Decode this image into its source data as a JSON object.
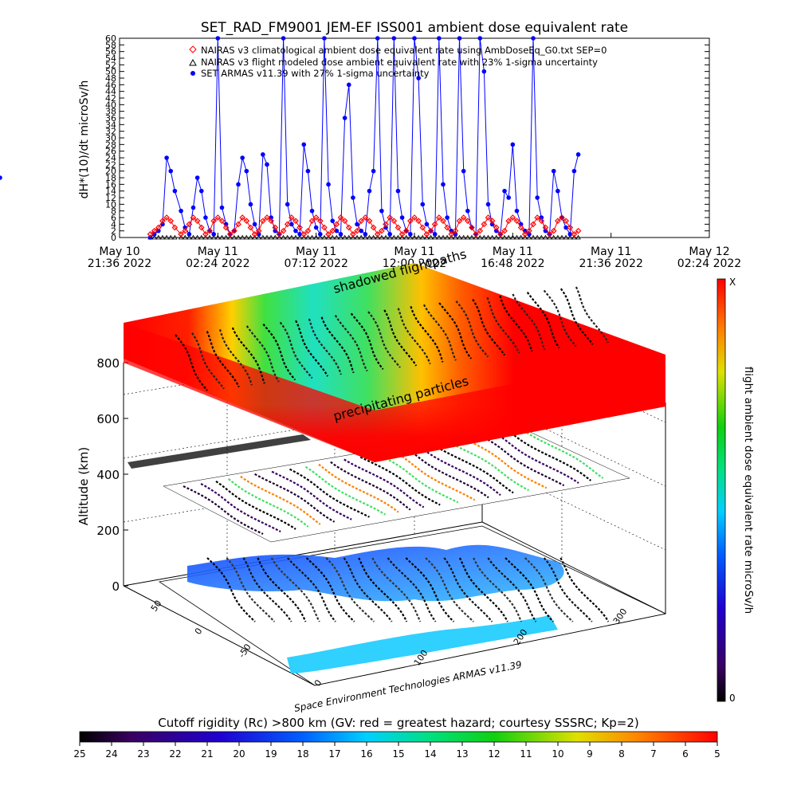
{
  "chart_data": [
    {
      "type": "line",
      "title": "SET_RAD_FM9001  JEM-EF ISS001 ambient dose equivalent rate",
      "ylabel": "dH*(10)/dt microSv/h",
      "ylim": [
        0,
        60
      ],
      "y_ticks": [
        "0",
        "2",
        "4",
        "6",
        "8",
        "10",
        "12",
        "14",
        "16",
        "18",
        "20",
        "22",
        "24",
        "26",
        "28",
        "30",
        "32",
        "34",
        "36",
        "38",
        "40",
        "42",
        "44",
        "46",
        "48",
        "50",
        "52",
        "54",
        "56",
        "58",
        "60"
      ],
      "x_ticks": [
        {
          "line1": "May 10",
          "line2": "21:36 2022"
        },
        {
          "line1": "May 11",
          "line2": "02:24 2022"
        },
        {
          "line1": "May 11",
          "line2": "07:12 2022"
        },
        {
          "line1": "May 11",
          "line2": "12:00 2022"
        },
        {
          "line1": "May 11",
          "line2": "16:48 2022"
        },
        {
          "line1": "May 11",
          "line2": "21:36 2022"
        },
        {
          "line1": "May 12",
          "line2": "02:24 2022"
        }
      ],
      "legend": [
        "NAIRAS v3 climatological ambient dose equivalent rate using AmbDoseEq_G0.txt SEP=0",
        "NAIRAS v3 flight modeled dose ambient equivalent rate with 23% 1-sigma uncertainty",
        "SET ARMAS v11.39 with 27% 1-sigma uncertainty"
      ],
      "legend_position": "top",
      "series": [
        {
          "name": "NAIRAS v3 climatological ambient dose equivalent rate using AmbDoseEq_G0.txt SEP=0",
          "color": "#ff0000",
          "marker": "diamond"
        },
        {
          "name": "NAIRAS v3 flight modeled dose ambient equivalent rate with 23% 1-sigma uncertainty",
          "color": "#000000",
          "marker": "triangle"
        },
        {
          "name": "SET ARMAS v11.39 with 27% 1-sigma uncertainty",
          "color": "#0000ff",
          "marker": "circle"
        }
      ],
      "x_hours": [
        1.5,
        1.7,
        1.9,
        2.1,
        2.3,
        2.5,
        2.7,
        3.0,
        3.2,
        3.4,
        3.6,
        3.8,
        4.0,
        4.2,
        4.4,
        4.6,
        4.8,
        5.0,
        5.2,
        5.4,
        5.6,
        5.8,
        6.0,
        6.2,
        6.4,
        6.6,
        6.8,
        7.0,
        7.2,
        7.4,
        7.6,
        7.8,
        8.0,
        8.2,
        8.4,
        8.6,
        8.8,
        9.0,
        9.2,
        9.4,
        9.6,
        9.8,
        10.0,
        10.2,
        10.4,
        10.6,
        10.8,
        11.0,
        11.2,
        11.4,
        11.6,
        11.8,
        12.0,
        12.2,
        12.4,
        12.6,
        12.8,
        13.0,
        13.2,
        13.4,
        13.6,
        13.8,
        14.0,
        14.2,
        14.4,
        14.6,
        14.8,
        15.0,
        15.2,
        15.4,
        15.6,
        15.8,
        16.0,
        16.2,
        16.4,
        16.6,
        16.8,
        17.0,
        17.2,
        17.4,
        17.6,
        17.8,
        18.0,
        18.2,
        18.4,
        18.6,
        18.8,
        19.0,
        19.2,
        19.4,
        19.6,
        19.8,
        20.0,
        20.2,
        20.4,
        20.6,
        20.8,
        21.0,
        21.2,
        21.4,
        21.6,
        21.8,
        22.0,
        22.2,
        22.4
      ],
      "armas_values": [
        0,
        1,
        2,
        4,
        24,
        20,
        14,
        8,
        3,
        1,
        9,
        18,
        14,
        6,
        2,
        1,
        60,
        9,
        4,
        1,
        2,
        16,
        24,
        20,
        10,
        4,
        1,
        25,
        22,
        6,
        2,
        1,
        60,
        10,
        4,
        2,
        1,
        28,
        20,
        8,
        3,
        1,
        60,
        16,
        5,
        2,
        1,
        36,
        46,
        12,
        4,
        2,
        1,
        14,
        20,
        60,
        8,
        3,
        1,
        60,
        14,
        6,
        2,
        1,
        60,
        48,
        10,
        4,
        2,
        1,
        60,
        16,
        6,
        2,
        1,
        60,
        20,
        8,
        3,
        1,
        60,
        50,
        10,
        4,
        2,
        1,
        14,
        12,
        28,
        8,
        4,
        2,
        1,
        60,
        12,
        6,
        2,
        1,
        20,
        14,
        6,
        3,
        1,
        20,
        25,
        18
      ],
      "nairas_values": [
        1,
        2,
        3,
        5,
        6,
        5,
        3,
        1,
        2,
        4,
        6,
        5,
        3,
        1,
        2,
        5,
        6,
        5,
        3,
        1,
        2,
        4,
        6,
        5,
        3,
        1,
        2,
        5,
        6,
        5,
        3,
        1,
        2,
        4,
        6,
        5,
        3,
        1,
        2,
        5,
        6,
        5,
        3,
        1,
        2,
        4,
        6,
        5,
        3,
        1,
        2,
        5,
        6,
        5,
        3,
        1,
        2,
        4,
        6,
        5,
        3,
        1,
        2,
        5,
        6,
        5,
        3,
        1,
        2,
        4,
        6,
        5,
        3,
        1,
        2,
        5,
        6,
        5,
        3,
        1,
        2,
        4,
        6,
        5,
        3,
        1,
        2,
        5,
        6,
        5,
        3,
        1,
        2,
        4,
        6,
        5,
        3,
        1,
        2,
        5,
        6,
        5,
        3,
        1,
        2
      ],
      "climatological_values": [
        0,
        0,
        0,
        0,
        0,
        0,
        0,
        0,
        0,
        0,
        0,
        0,
        0,
        0,
        0,
        0,
        0,
        0,
        0,
        0,
        0,
        0,
        0,
        0,
        0,
        0,
        0,
        0,
        0,
        0,
        0,
        0,
        0,
        0,
        0,
        0,
        0,
        0,
        0,
        0,
        0,
        0,
        0,
        0,
        0,
        0,
        0,
        0,
        0,
        0,
        0,
        0,
        0,
        0,
        0,
        0,
        0,
        0,
        0,
        0,
        0,
        0,
        0,
        0,
        0,
        0,
        0,
        0,
        0,
        0,
        0,
        0,
        0,
        0,
        0,
        0,
        0,
        0,
        0,
        0,
        0,
        0,
        0,
        0,
        0,
        0,
        0,
        0,
        0,
        0,
        0,
        0,
        0,
        0,
        0,
        0,
        0,
        0,
        0,
        0,
        0,
        0,
        0,
        0,
        0
      ]
    },
    {
      "type": "heatmap",
      "ylabel": "Altitude (km)",
      "z_ticks": [
        "0",
        "200",
        "400",
        "600",
        "800"
      ],
      "lon_ticks": [
        "0",
        "100",
        "200",
        "300"
      ],
      "lat_ticks": [
        "50",
        "0",
        "-50"
      ],
      "annotations": [
        "shadowed flightpaths",
        "precipitating particles"
      ],
      "credit": "Space Environment Technologies ARMAS v11.39",
      "colorbar_right": {
        "label": "flight ambient dose equivalent rate microSv/h",
        "top": "X",
        "bottom": "0"
      },
      "colorbar_bottom": {
        "label": "Cutoff rigidity (Rc) >800 km (GV: red = greatest hazard; courtesy SSSRC; Kp=2)",
        "ticks": [
          "25",
          "24",
          "23",
          "22",
          "21",
          "20",
          "19",
          "18",
          "17",
          "16",
          "15",
          "14",
          "13",
          "12",
          "11",
          "10",
          "9",
          "8",
          "7",
          "6",
          "5"
        ]
      }
    }
  ]
}
